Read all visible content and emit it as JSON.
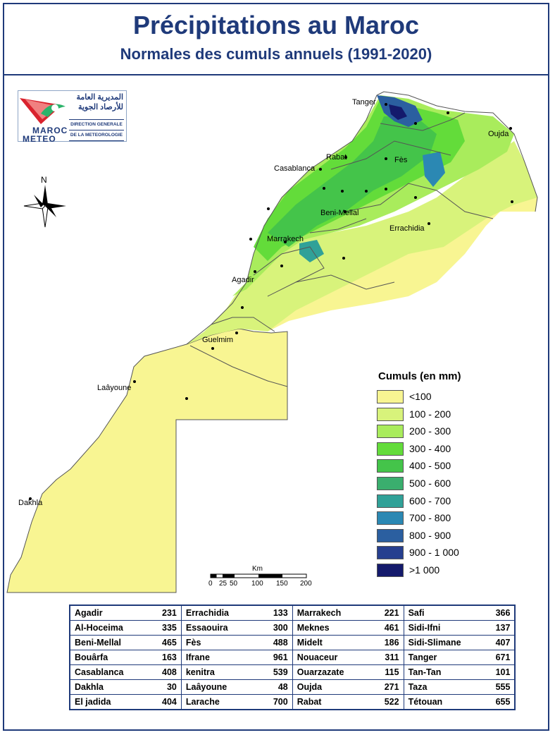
{
  "header": {
    "title": "Précipitations au Maroc",
    "subtitle": "Normales des cumuls annuels (1991-2020)"
  },
  "logo": {
    "arabic_line1": "المديرية العامة",
    "arabic_line2": "للأرصاد الجوية",
    "french_line1": "DIRECTION GENERALE",
    "french_line2": "DE LA METEOROLOGIE",
    "wordmark_top": "MAROC",
    "wordmark_bottom": "METEO"
  },
  "compass": {
    "label": "N",
    "icon": "north-arrow-icon"
  },
  "cities": [
    "Tanger",
    "Oujda",
    "Rabat",
    "Fès",
    "Casablanca",
    "Beni-Mellal",
    "Errachidia",
    "Marrakech",
    "Agadir",
    "Guelmim",
    "Laâyoune",
    "Dakhla"
  ],
  "legend": {
    "title": "Cumuls (en mm)",
    "classes": [
      {
        "label": "<100",
        "color": "#f8f592"
      },
      {
        "label": "100 - 200",
        "color": "#d8f37b"
      },
      {
        "label": "200 - 300",
        "color": "#a9ec5c"
      },
      {
        "label": "300 - 400",
        "color": "#63dc3a"
      },
      {
        "label": "400 - 500",
        "color": "#44c44a"
      },
      {
        "label": "500 - 600",
        "color": "#3aae6e"
      },
      {
        "label": "600 - 700",
        "color": "#30a198"
      },
      {
        "label": "700 - 800",
        "color": "#2b88b3"
      },
      {
        "label": "800 - 900",
        "color": "#2b5fa0"
      },
      {
        "label": "900 - 1 000",
        "color": "#263f8f"
      },
      {
        "label": ">1 000",
        "color": "#141a6c"
      }
    ]
  },
  "scale_bar": {
    "unit": "Km",
    "ticks": [
      "0",
      "25",
      "50",
      "100",
      "150",
      "200"
    ]
  },
  "stations": [
    [
      {
        "name": "Agadir",
        "value": "231"
      },
      {
        "name": "Errachidia",
        "value": "133"
      },
      {
        "name": "Marrakech",
        "value": "221"
      },
      {
        "name": "Safi",
        "value": "366"
      }
    ],
    [
      {
        "name": "Al-Hoceima",
        "value": "335"
      },
      {
        "name": "Essaouira",
        "value": "300"
      },
      {
        "name": "Meknes",
        "value": "461"
      },
      {
        "name": "Sidi-Ifni",
        "value": "137"
      }
    ],
    [
      {
        "name": "Beni-Mellal",
        "value": "465"
      },
      {
        "name": "Fès",
        "value": "488"
      },
      {
        "name": "Midelt",
        "value": "186"
      },
      {
        "name": "Sidi-Slimane",
        "value": "407"
      }
    ],
    [
      {
        "name": "Bouârfa",
        "value": "163"
      },
      {
        "name": "Ifrane",
        "value": "961"
      },
      {
        "name": "Nouaceur",
        "value": "311"
      },
      {
        "name": "Tanger",
        "value": "671"
      }
    ],
    [
      {
        "name": "Casablanca",
        "value": "408"
      },
      {
        "name": "kenitra",
        "value": "539"
      },
      {
        "name": "Ouarzazate",
        "value": "115"
      },
      {
        "name": "Tan-Tan",
        "value": "101"
      }
    ],
    [
      {
        "name": "Dakhla",
        "value": "30"
      },
      {
        "name": "Laâyoune",
        "value": "48"
      },
      {
        "name": "Oujda",
        "value": "271"
      },
      {
        "name": "Taza",
        "value": "555"
      }
    ],
    [
      {
        "name": "El jadida",
        "value": "404"
      },
      {
        "name": "Larache",
        "value": "700"
      },
      {
        "name": "Rabat",
        "value": "522"
      },
      {
        "name": "Tétouan",
        "value": "655"
      }
    ]
  ]
}
